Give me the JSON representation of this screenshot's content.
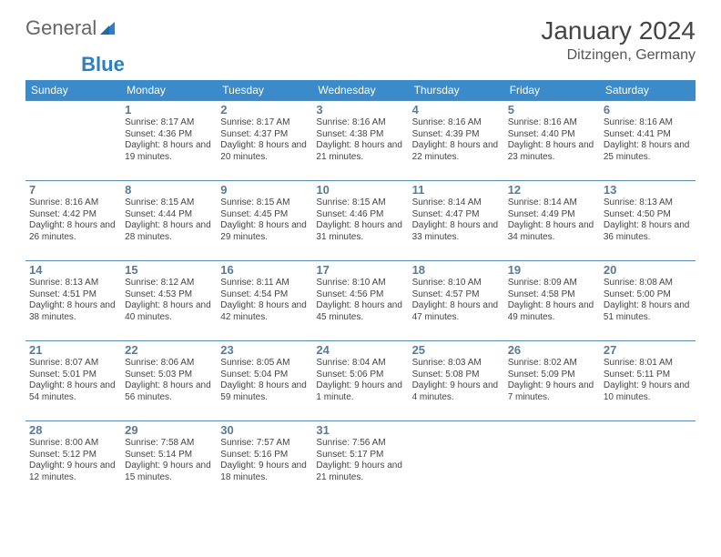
{
  "logo": {
    "text1": "General",
    "text2": "Blue"
  },
  "title": "January 2024",
  "location": "Ditzingen, Germany",
  "colors": {
    "header_bg": "#3b8aca",
    "header_fg": "#ffffff",
    "border": "#5a8bb0",
    "daynum": "#5a7a95",
    "text": "#444444"
  },
  "weekdays": [
    "Sunday",
    "Monday",
    "Tuesday",
    "Wednesday",
    "Thursday",
    "Friday",
    "Saturday"
  ],
  "weeks": [
    [
      {
        "num": "",
        "sunrise": "",
        "sunset": "",
        "daylight": ""
      },
      {
        "num": "1",
        "sunrise": "Sunrise: 8:17 AM",
        "sunset": "Sunset: 4:36 PM",
        "daylight": "Daylight: 8 hours and 19 minutes."
      },
      {
        "num": "2",
        "sunrise": "Sunrise: 8:17 AM",
        "sunset": "Sunset: 4:37 PM",
        "daylight": "Daylight: 8 hours and 20 minutes."
      },
      {
        "num": "3",
        "sunrise": "Sunrise: 8:16 AM",
        "sunset": "Sunset: 4:38 PM",
        "daylight": "Daylight: 8 hours and 21 minutes."
      },
      {
        "num": "4",
        "sunrise": "Sunrise: 8:16 AM",
        "sunset": "Sunset: 4:39 PM",
        "daylight": "Daylight: 8 hours and 22 minutes."
      },
      {
        "num": "5",
        "sunrise": "Sunrise: 8:16 AM",
        "sunset": "Sunset: 4:40 PM",
        "daylight": "Daylight: 8 hours and 23 minutes."
      },
      {
        "num": "6",
        "sunrise": "Sunrise: 8:16 AM",
        "sunset": "Sunset: 4:41 PM",
        "daylight": "Daylight: 8 hours and 25 minutes."
      }
    ],
    [
      {
        "num": "7",
        "sunrise": "Sunrise: 8:16 AM",
        "sunset": "Sunset: 4:42 PM",
        "daylight": "Daylight: 8 hours and 26 minutes."
      },
      {
        "num": "8",
        "sunrise": "Sunrise: 8:15 AM",
        "sunset": "Sunset: 4:44 PM",
        "daylight": "Daylight: 8 hours and 28 minutes."
      },
      {
        "num": "9",
        "sunrise": "Sunrise: 8:15 AM",
        "sunset": "Sunset: 4:45 PM",
        "daylight": "Daylight: 8 hours and 29 minutes."
      },
      {
        "num": "10",
        "sunrise": "Sunrise: 8:15 AM",
        "sunset": "Sunset: 4:46 PM",
        "daylight": "Daylight: 8 hours and 31 minutes."
      },
      {
        "num": "11",
        "sunrise": "Sunrise: 8:14 AM",
        "sunset": "Sunset: 4:47 PM",
        "daylight": "Daylight: 8 hours and 33 minutes."
      },
      {
        "num": "12",
        "sunrise": "Sunrise: 8:14 AM",
        "sunset": "Sunset: 4:49 PM",
        "daylight": "Daylight: 8 hours and 34 minutes."
      },
      {
        "num": "13",
        "sunrise": "Sunrise: 8:13 AM",
        "sunset": "Sunset: 4:50 PM",
        "daylight": "Daylight: 8 hours and 36 minutes."
      }
    ],
    [
      {
        "num": "14",
        "sunrise": "Sunrise: 8:13 AM",
        "sunset": "Sunset: 4:51 PM",
        "daylight": "Daylight: 8 hours and 38 minutes."
      },
      {
        "num": "15",
        "sunrise": "Sunrise: 8:12 AM",
        "sunset": "Sunset: 4:53 PM",
        "daylight": "Daylight: 8 hours and 40 minutes."
      },
      {
        "num": "16",
        "sunrise": "Sunrise: 8:11 AM",
        "sunset": "Sunset: 4:54 PM",
        "daylight": "Daylight: 8 hours and 42 minutes."
      },
      {
        "num": "17",
        "sunrise": "Sunrise: 8:10 AM",
        "sunset": "Sunset: 4:56 PM",
        "daylight": "Daylight: 8 hours and 45 minutes."
      },
      {
        "num": "18",
        "sunrise": "Sunrise: 8:10 AM",
        "sunset": "Sunset: 4:57 PM",
        "daylight": "Daylight: 8 hours and 47 minutes."
      },
      {
        "num": "19",
        "sunrise": "Sunrise: 8:09 AM",
        "sunset": "Sunset: 4:58 PM",
        "daylight": "Daylight: 8 hours and 49 minutes."
      },
      {
        "num": "20",
        "sunrise": "Sunrise: 8:08 AM",
        "sunset": "Sunset: 5:00 PM",
        "daylight": "Daylight: 8 hours and 51 minutes."
      }
    ],
    [
      {
        "num": "21",
        "sunrise": "Sunrise: 8:07 AM",
        "sunset": "Sunset: 5:01 PM",
        "daylight": "Daylight: 8 hours and 54 minutes."
      },
      {
        "num": "22",
        "sunrise": "Sunrise: 8:06 AM",
        "sunset": "Sunset: 5:03 PM",
        "daylight": "Daylight: 8 hours and 56 minutes."
      },
      {
        "num": "23",
        "sunrise": "Sunrise: 8:05 AM",
        "sunset": "Sunset: 5:04 PM",
        "daylight": "Daylight: 8 hours and 59 minutes."
      },
      {
        "num": "24",
        "sunrise": "Sunrise: 8:04 AM",
        "sunset": "Sunset: 5:06 PM",
        "daylight": "Daylight: 9 hours and 1 minute."
      },
      {
        "num": "25",
        "sunrise": "Sunrise: 8:03 AM",
        "sunset": "Sunset: 5:08 PM",
        "daylight": "Daylight: 9 hours and 4 minutes."
      },
      {
        "num": "26",
        "sunrise": "Sunrise: 8:02 AM",
        "sunset": "Sunset: 5:09 PM",
        "daylight": "Daylight: 9 hours and 7 minutes."
      },
      {
        "num": "27",
        "sunrise": "Sunrise: 8:01 AM",
        "sunset": "Sunset: 5:11 PM",
        "daylight": "Daylight: 9 hours and 10 minutes."
      }
    ],
    [
      {
        "num": "28",
        "sunrise": "Sunrise: 8:00 AM",
        "sunset": "Sunset: 5:12 PM",
        "daylight": "Daylight: 9 hours and 12 minutes."
      },
      {
        "num": "29",
        "sunrise": "Sunrise: 7:58 AM",
        "sunset": "Sunset: 5:14 PM",
        "daylight": "Daylight: 9 hours and 15 minutes."
      },
      {
        "num": "30",
        "sunrise": "Sunrise: 7:57 AM",
        "sunset": "Sunset: 5:16 PM",
        "daylight": "Daylight: 9 hours and 18 minutes."
      },
      {
        "num": "31",
        "sunrise": "Sunrise: 7:56 AM",
        "sunset": "Sunset: 5:17 PM",
        "daylight": "Daylight: 9 hours and 21 minutes."
      },
      {
        "num": "",
        "sunrise": "",
        "sunset": "",
        "daylight": ""
      },
      {
        "num": "",
        "sunrise": "",
        "sunset": "",
        "daylight": ""
      },
      {
        "num": "",
        "sunrise": "",
        "sunset": "",
        "daylight": ""
      }
    ]
  ]
}
